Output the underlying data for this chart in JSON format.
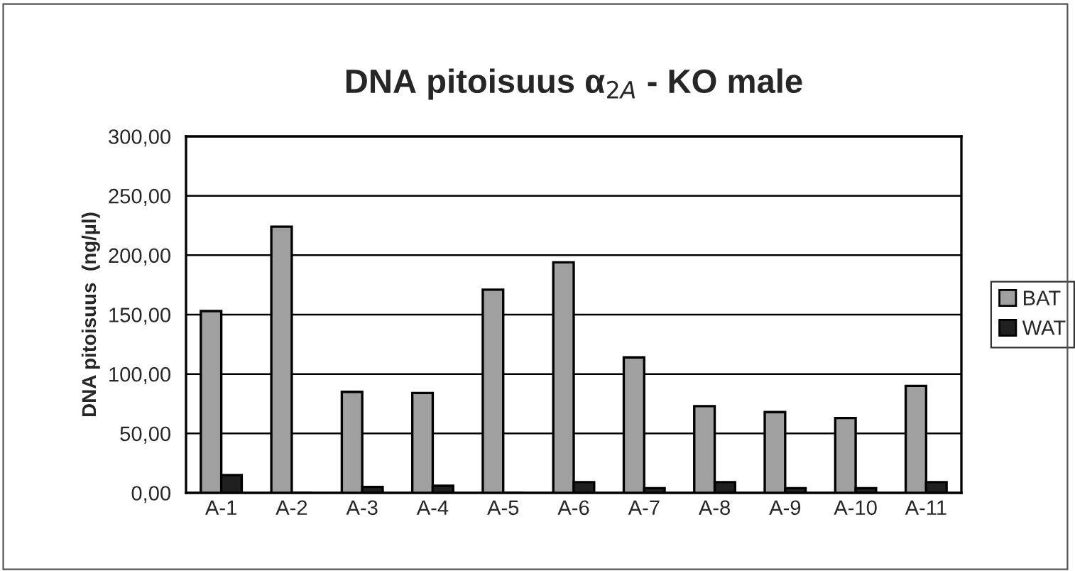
{
  "chart_data": {
    "type": "bar",
    "title": "DNA pitoisuus α$_{2A}$ - KO male",
    "ylabel": "DNA pitoisuus  (ng/µl)",
    "categories": [
      "A-1",
      "A-2",
      "A-3",
      "A-4",
      "A-5",
      "A-6",
      "A-7",
      "A-8",
      "A-9",
      "A-10",
      "A-11"
    ],
    "series": [
      {
        "name": "BAT",
        "color": "#a0a0a0",
        "values": [
          153,
          224,
          85,
          84,
          171,
          194,
          114,
          73,
          68,
          63,
          90
        ]
      },
      {
        "name": "WAT",
        "color": "#202020",
        "values": [
          15,
          0,
          5,
          6,
          0,
          9,
          4,
          9,
          4,
          4,
          9
        ]
      }
    ],
    "ylim": [
      0,
      300
    ],
    "yticks": [
      {
        "value": 0,
        "label": "0,00"
      },
      {
        "value": 50,
        "label": "50,00"
      },
      {
        "value": 100,
        "label": "100,00"
      },
      {
        "value": 150,
        "label": "150,00"
      },
      {
        "value": 200,
        "label": "200,00"
      },
      {
        "value": 250,
        "label": "250,00"
      },
      {
        "value": 300,
        "label": "300,00"
      }
    ],
    "grid": "y",
    "legend": "right"
  }
}
